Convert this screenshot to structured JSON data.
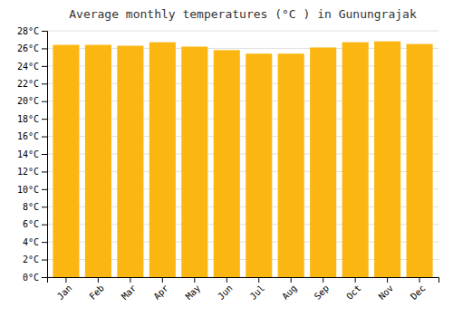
{
  "chart_data": {
    "type": "bar",
    "title": "Average monthly temperatures (°C ) in Gunungrajak",
    "categories": [
      "Jan",
      "Feb",
      "Mar",
      "Apr",
      "May",
      "Jun",
      "Jul",
      "Aug",
      "Sep",
      "Oct",
      "Nov",
      "Dec"
    ],
    "values": [
      26.4,
      26.4,
      26.3,
      26.7,
      26.2,
      25.8,
      25.4,
      25.4,
      26.1,
      26.7,
      26.8,
      26.5
    ],
    "color": "#FBB612",
    "ylim": [
      0,
      28
    ],
    "yticks": [
      {
        "value": 0,
        "label": "0°C"
      },
      {
        "value": 2,
        "label": "2°C"
      },
      {
        "value": 4,
        "label": "4°C"
      },
      {
        "value": 6,
        "label": "6°C"
      },
      {
        "value": 8,
        "label": "8°C"
      },
      {
        "value": 10,
        "label": "10°C"
      },
      {
        "value": 12,
        "label": "12°C"
      },
      {
        "value": 14,
        "label": "14°C"
      },
      {
        "value": 16,
        "label": "16°C"
      },
      {
        "value": 18,
        "label": "18°C"
      },
      {
        "value": 20,
        "label": "20°C"
      },
      {
        "value": 22,
        "label": "22°C"
      },
      {
        "value": 24,
        "label": "24°C"
      },
      {
        "value": 26,
        "label": "26°C"
      },
      {
        "value": 28,
        "label": "28°C"
      }
    ],
    "grid": true
  }
}
